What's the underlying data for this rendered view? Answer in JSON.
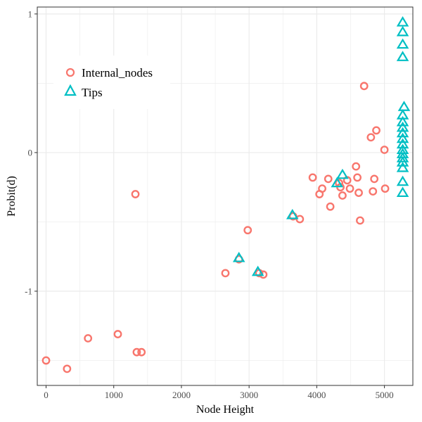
{
  "colors": {
    "internal": "#f8766d",
    "tips": "#00bfc4",
    "grid": "#ebebeb",
    "panel_border": "#333333"
  },
  "chart_data": {
    "type": "scatter",
    "xlabel": "Node Height",
    "ylabel": "Probit(d)",
    "xlim": [
      -130,
      5420
    ],
    "ylim": [
      -1.68,
      1.05
    ],
    "xticks": [
      0,
      1000,
      2000,
      3000,
      4000,
      5000
    ],
    "yticks": [
      -1,
      0,
      1
    ],
    "grid": true,
    "legend_position": "top-left",
    "series": [
      {
        "name": "Internal_nodes",
        "marker": "circle",
        "points": [
          [
            0,
            -1.5
          ],
          [
            310,
            -1.56
          ],
          [
            620,
            -1.34
          ],
          [
            1060,
            -1.31
          ],
          [
            1340,
            -1.44
          ],
          [
            1410,
            -1.44
          ],
          [
            1320,
            -0.3
          ],
          [
            2650,
            -0.87
          ],
          [
            2850,
            -0.77
          ],
          [
            2980,
            -0.56
          ],
          [
            3150,
            -0.87
          ],
          [
            3210,
            -0.88
          ],
          [
            3650,
            -0.46
          ],
          [
            3750,
            -0.48
          ],
          [
            3940,
            -0.18
          ],
          [
            4040,
            -0.3
          ],
          [
            4080,
            -0.26
          ],
          [
            4170,
            -0.19
          ],
          [
            4200,
            -0.39
          ],
          [
            4330,
            -0.22
          ],
          [
            4350,
            -0.25
          ],
          [
            4380,
            -0.31
          ],
          [
            4450,
            -0.2
          ],
          [
            4490,
            -0.26
          ],
          [
            4580,
            -0.1
          ],
          [
            4600,
            -0.18
          ],
          [
            4620,
            -0.29
          ],
          [
            4640,
            -0.49
          ],
          [
            4700,
            0.48
          ],
          [
            4800,
            0.11
          ],
          [
            4830,
            -0.28
          ],
          [
            4850,
            -0.19
          ],
          [
            4880,
            0.16
          ],
          [
            5000,
            0.02
          ],
          [
            5010,
            -0.26
          ]
        ]
      },
      {
        "name": "Tips",
        "marker": "triangle",
        "points": [
          [
            2850,
            -0.76
          ],
          [
            3130,
            -0.86
          ],
          [
            3640,
            -0.45
          ],
          [
            4300,
            -0.22
          ],
          [
            4380,
            -0.16
          ],
          [
            5270,
            0.94
          ],
          [
            5270,
            0.87
          ],
          [
            5270,
            0.78
          ],
          [
            5270,
            0.69
          ],
          [
            5290,
            0.33
          ],
          [
            5270,
            0.27
          ],
          [
            5270,
            0.22
          ],
          [
            5270,
            0.18
          ],
          [
            5270,
            0.14
          ],
          [
            5270,
            0.1
          ],
          [
            5270,
            0.06
          ],
          [
            5270,
            0.02
          ],
          [
            5270,
            -0.01
          ],
          [
            5270,
            -0.04
          ],
          [
            5270,
            -0.07
          ],
          [
            5270,
            -0.11
          ],
          [
            5270,
            -0.21
          ],
          [
            5270,
            -0.29
          ]
        ]
      }
    ]
  }
}
